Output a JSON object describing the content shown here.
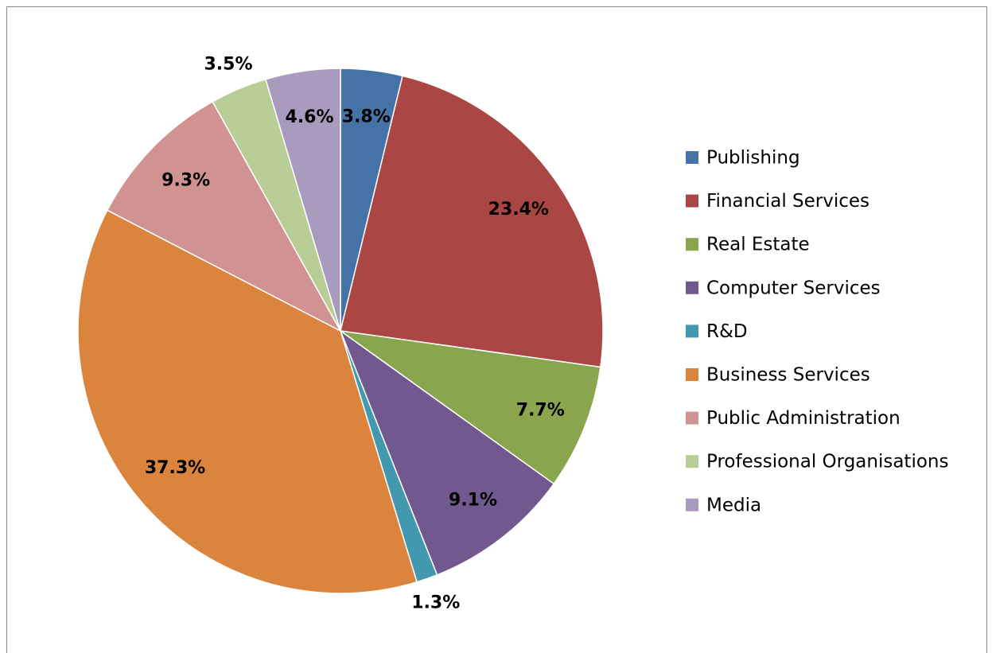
{
  "chart_data": {
    "type": "pie",
    "categories": [
      "Publishing",
      "Financial Services",
      "Real Estate",
      "Computer Services",
      "R&D",
      "Business Services",
      "Public Administration",
      "Professional Organisations",
      "Media"
    ],
    "values": [
      3.8,
      23.4,
      7.7,
      9.1,
      1.3,
      37.3,
      9.3,
      3.5,
      4.6
    ],
    "value_labels": [
      "3.8%",
      "23.4%",
      "7.7%",
      "9.1%",
      "1.3%",
      "37.3%",
      "9.3%",
      "3.5%",
      "4.6%"
    ],
    "colors": [
      "#4572a7",
      "#aa4643",
      "#89a54e",
      "#71588f",
      "#4198af",
      "#db843d",
      "#d19392",
      "#b9cd96",
      "#a99bbd"
    ],
    "legend": "right"
  }
}
